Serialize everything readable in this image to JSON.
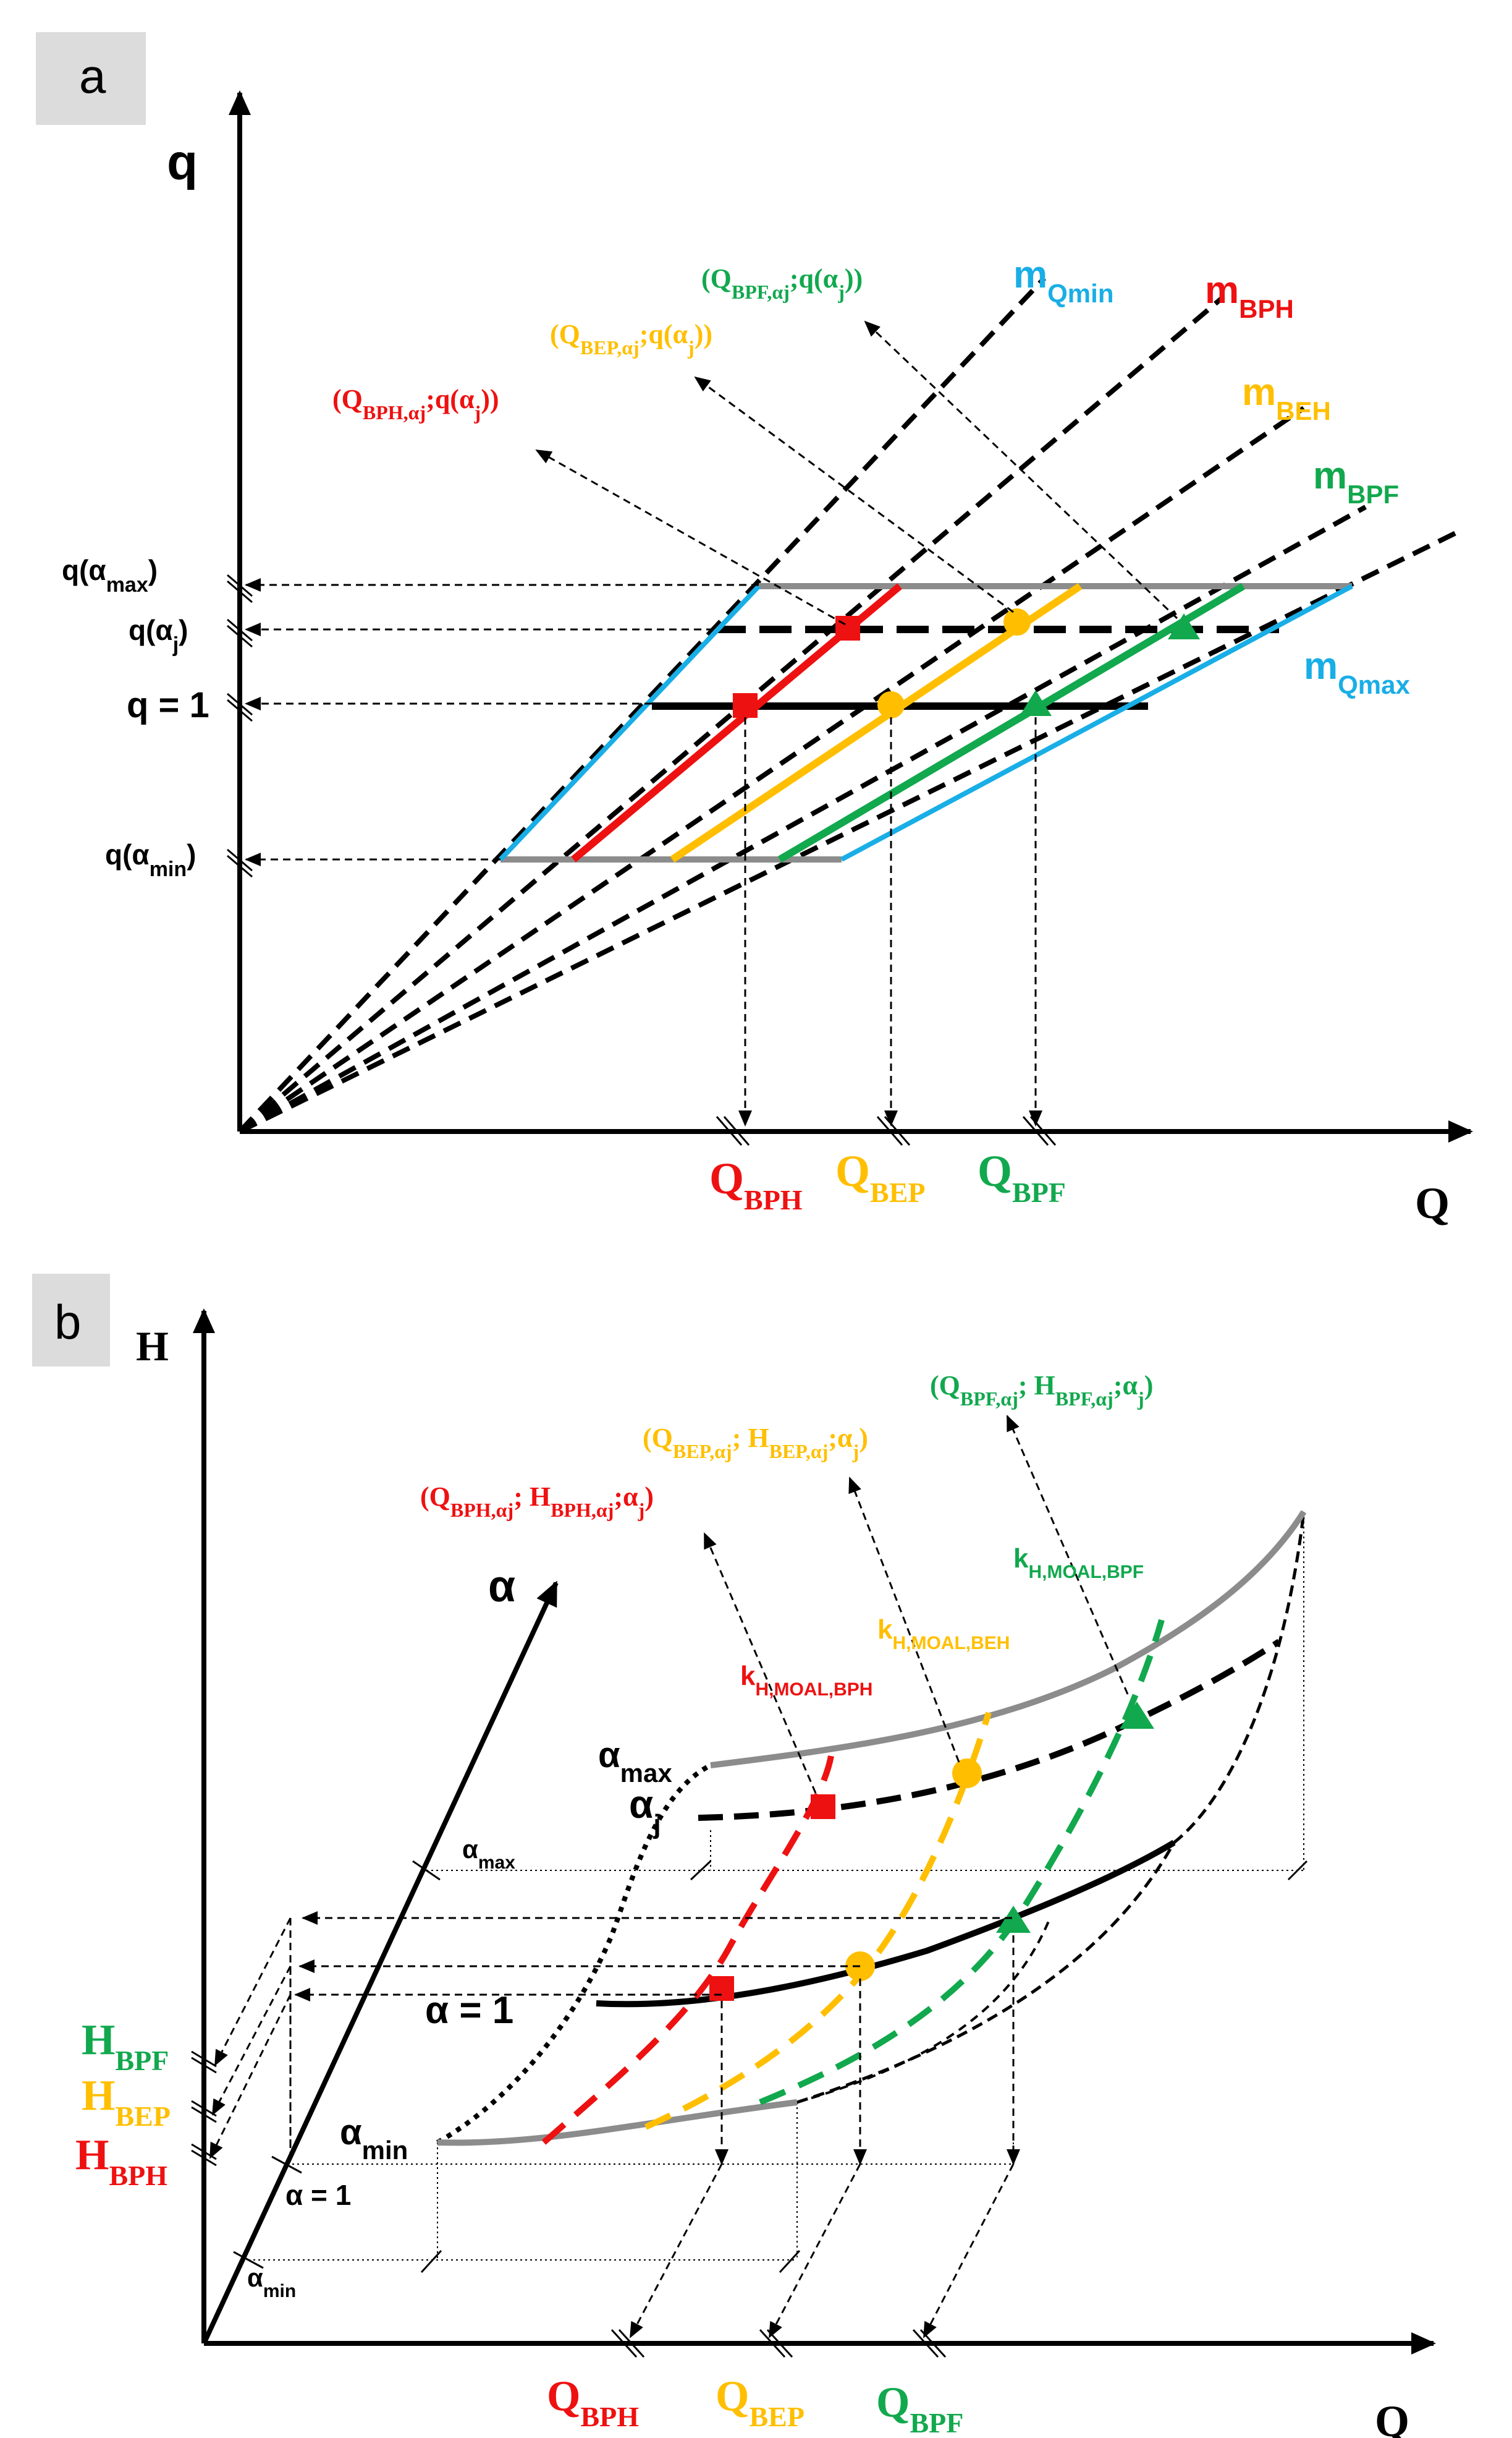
{
  "colors": {
    "red": "#ee1111",
    "yellow": "#ffbf00",
    "green": "#12a84e",
    "blue": "#19aee6",
    "gray": "#8c8c8c",
    "black": "#000000",
    "panel_bg": "#dcdcdc"
  },
  "panel_a": {
    "tag": "a",
    "y_axis": "q",
    "x_axis": "Q",
    "y_levels": {
      "q_max": {
        "main": "q(α",
        "sub": "max",
        "end": ")"
      },
      "q_j": {
        "main": "q(α",
        "sub": "j",
        "end": ")"
      },
      "q_one": {
        "main": "q = 1"
      },
      "q_min": {
        "main": "q(α",
        "sub": "min",
        "end": ")"
      }
    },
    "lines": {
      "m_qmin": {
        "main": "m",
        "sub": "Qmin"
      },
      "m_bph": {
        "main": "m",
        "sub": "BPH"
      },
      "m_beh": {
        "main": "m",
        "sub": "BEH"
      },
      "m_bpf": {
        "main": "m",
        "sub": "BPF"
      },
      "m_qmax": {
        "main": "m",
        "sub": "Qmax"
      }
    },
    "points": {
      "bph": {
        "a": "(Q",
        "sub1": "BPH,αj",
        "b": ";q(α",
        "sub2": "j",
        "c": "))"
      },
      "bep": {
        "a": "(Q",
        "sub1": "BEP,αj",
        "b": ";q(α",
        "sub2": "j",
        "c": "))"
      },
      "bpf": {
        "a": "(Q",
        "sub1": "BPF,αj",
        "b": ";q(α",
        "sub2": "j",
        "c": "))"
      }
    },
    "x_ticks": {
      "bph": {
        "main": "Q",
        "sub": "BPH"
      },
      "bep": {
        "main": "Q",
        "sub": "BEP"
      },
      "bpf": {
        "main": "Q",
        "sub": "BPF"
      }
    }
  },
  "panel_b": {
    "tag": "b",
    "h_axis": "H",
    "q_axis": "Q",
    "alpha_axis": "α",
    "curves": {
      "alpha_max": {
        "main": "α",
        "sub": "max"
      },
      "alpha_j": {
        "main": "α",
        "sub": "j"
      },
      "alpha_one": {
        "main": "α = 1"
      },
      "alpha_min": {
        "main": "α",
        "sub": "min"
      }
    },
    "axis_ticks": {
      "alpha_max": {
        "main": "α",
        "sub": "max"
      },
      "alpha_one": {
        "main": "α = 1"
      },
      "alpha_min": {
        "main": "α",
        "sub": "min"
      }
    },
    "k_labels": {
      "bph": {
        "main": "k",
        "sub": "H,MOAL,BPH"
      },
      "beh": {
        "main": "k",
        "sub": "H,MOAL,BEH"
      },
      "bpf": {
        "main": "k",
        "sub": "H,MOAL,BPF"
      }
    },
    "points": {
      "bph": {
        "a": "(Q",
        "sub1": "BPH,αj",
        "b": "; H",
        "sub2": "BPH,αj",
        "c": ";α",
        "sub3": "j",
        "d": ")"
      },
      "bep": {
        "a": "(Q",
        "sub1": "BEP,αj",
        "b": "; H",
        "sub2": "BEP,αj",
        "c": ";α",
        "sub3": "j",
        "d": ")"
      },
      "bpf": {
        "a": "(Q",
        "sub1": "BPF,αj",
        "b": "; H",
        "sub2": "BPF,αj",
        "c": ";α",
        "sub3": "j",
        "d": ")"
      }
    },
    "h_ticks": {
      "bpf": {
        "main": "H",
        "sub": "BPF"
      },
      "bep": {
        "main": "H",
        "sub": "BEP"
      },
      "bph": {
        "main": "H",
        "sub": "BPH"
      }
    },
    "q_ticks": {
      "bph": {
        "main": "Q",
        "sub": "BPH"
      },
      "bep": {
        "main": "Q",
        "sub": "BEP"
      },
      "bpf": {
        "main": "Q",
        "sub": "BPF"
      }
    }
  }
}
